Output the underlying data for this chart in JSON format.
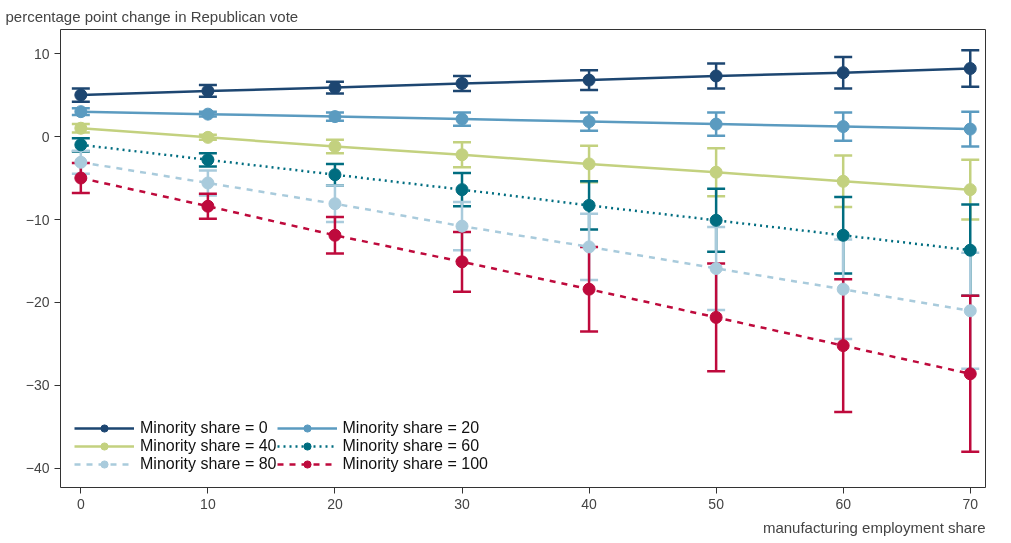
{
  "chart_data": {
    "type": "line",
    "xlabel": "manufacturing employment share",
    "ylabel": "percentage point change in Republican vote",
    "x": [
      0,
      10,
      20,
      30,
      40,
      50,
      60,
      70
    ],
    "series": [
      {
        "name": "Minority share = 0",
        "color": "#1d4671",
        "line_style": "solid",
        "values": [
          5.0,
          5.5,
          5.9,
          6.4,
          6.8,
          7.3,
          7.7,
          8.2
        ],
        "errors": [
          0.8,
          0.7,
          0.7,
          0.9,
          1.2,
          1.5,
          1.9,
          2.2
        ]
      },
      {
        "name": "Minority share = 20",
        "color": "#5b9bc0",
        "line_style": "solid",
        "values": [
          3.0,
          2.7,
          2.4,
          2.1,
          1.8,
          1.5,
          1.2,
          0.9
        ],
        "errors": [
          0.4,
          0.3,
          0.5,
          0.8,
          1.1,
          1.4,
          1.7,
          2.1
        ]
      },
      {
        "name": "Minority share = 40",
        "color": "#c3d17f",
        "line_style": "solid",
        "values": [
          1.0,
          -0.1,
          -1.2,
          -2.2,
          -3.3,
          -4.3,
          -5.4,
          -6.4
        ],
        "errors": [
          0.5,
          0.3,
          0.8,
          1.5,
          2.2,
          2.9,
          3.1,
          3.6
        ]
      },
      {
        "name": "Minority share = 60",
        "color": "#006d80",
        "line_style": "dotted",
        "values": [
          -1.0,
          -2.8,
          -4.6,
          -6.4,
          -8.3,
          -10.1,
          -11.9,
          -13.7
        ],
        "errors": [
          0.8,
          0.8,
          1.3,
          2.0,
          2.9,
          3.8,
          4.6,
          5.5
        ]
      },
      {
        "name": "Minority share = 80",
        "color": "#a9cbdc",
        "line_style": "dashed",
        "values": [
          -3.1,
          -5.6,
          -8.1,
          -10.8,
          -13.3,
          -15.9,
          -18.4,
          -21.0
        ],
        "errors": [
          1.4,
          1.5,
          2.2,
          2.9,
          4.0,
          5.0,
          6.0,
          7.0
        ]
      },
      {
        "name": "Minority share = 100",
        "color": "#be0a3c",
        "line_style": "dashed",
        "values": [
          -5.0,
          -8.4,
          -11.9,
          -15.1,
          -18.4,
          -21.8,
          -25.2,
          -28.6
        ],
        "errors": [
          1.8,
          1.5,
          2.2,
          3.6,
          5.1,
          6.5,
          8.0,
          9.4
        ]
      }
    ],
    "xlim": [
      -1.6,
      71.2
    ],
    "ylim": [
      -42.3,
      12.9
    ],
    "xticks": [
      0,
      10,
      20,
      30,
      40,
      50,
      60,
      70
    ],
    "yticks": [
      -40,
      -30,
      -20,
      -10,
      0,
      10
    ],
    "grid": false,
    "legend": "bottom left",
    "marker": "circle"
  }
}
